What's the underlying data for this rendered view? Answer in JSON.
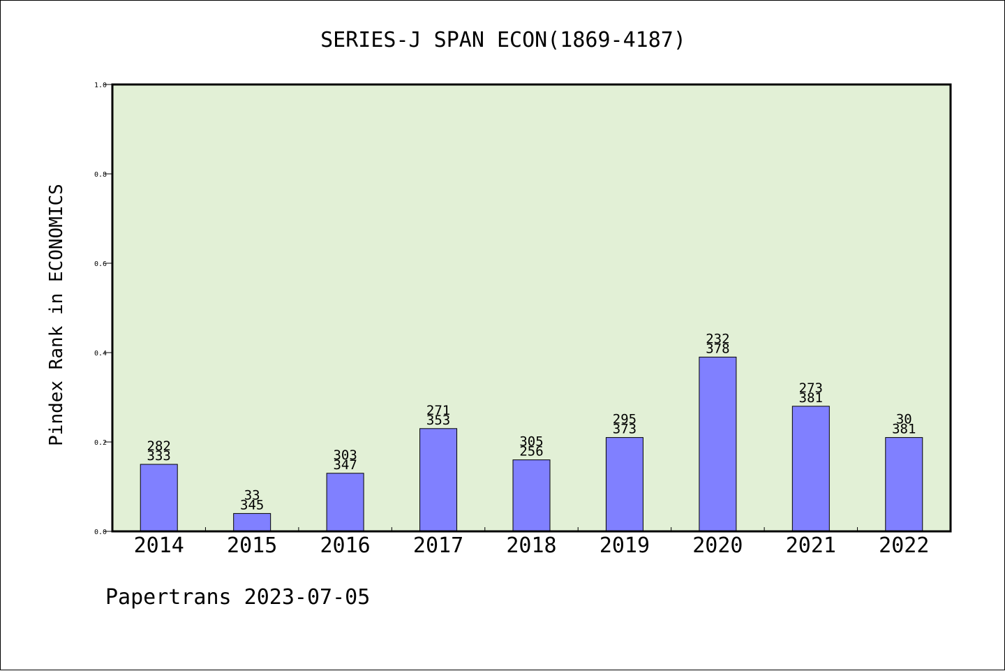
{
  "chart_data": {
    "type": "bar",
    "title": "SERIES-J SPAN ECON(1869-4187)",
    "xlabel": "",
    "ylabel": "Pindex Rank in ECONOMICS",
    "categories": [
      "2014",
      "2015",
      "2016",
      "2017",
      "2018",
      "2019",
      "2020",
      "2021",
      "2022"
    ],
    "values": [
      0.15,
      0.04,
      0.13,
      0.23,
      0.16,
      0.21,
      0.39,
      0.28,
      0.21
    ],
    "label_top": [
      "282",
      "33",
      "303",
      "271",
      "305",
      "295",
      "232",
      "273",
      "30"
    ],
    "label_bottom": [
      "333",
      "345",
      "347",
      "353",
      "256",
      "373",
      "378",
      "381",
      "381"
    ],
    "ylim": [
      0,
      1.0
    ],
    "yticks": [
      "0.0",
      "0.2",
      "0.4",
      "0.6",
      "0.8",
      "1.0"
    ],
    "grid": false,
    "colors": {
      "plot_bg": "#e2f0d6",
      "bar": "#8080ff",
      "bar_edge": "#000000"
    }
  },
  "footer": "Papertrans 2023-07-05"
}
